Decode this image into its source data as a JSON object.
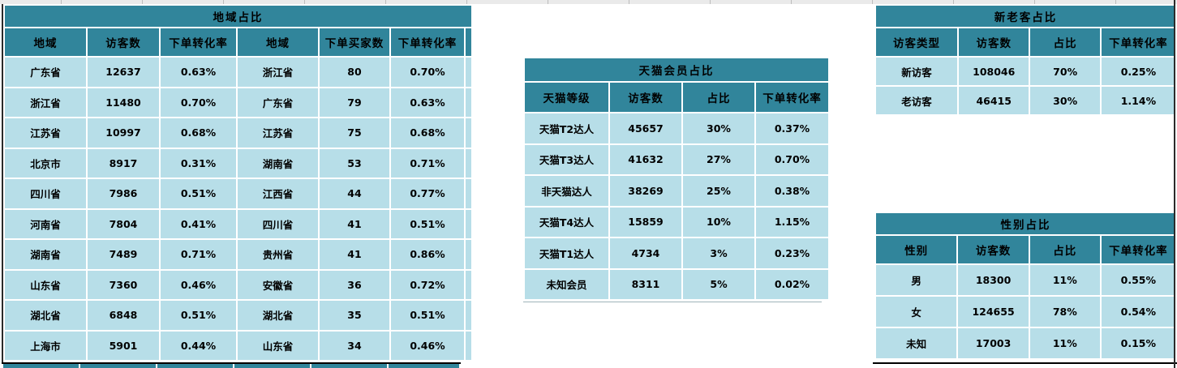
{
  "colors": {
    "header_teal": "#31859B",
    "cell_light_blue": "#B7DEE8",
    "text": "#000000",
    "sheet_background": "#FFFFFF",
    "pane_border": "#2B2B2B"
  },
  "tables": {
    "region": {
      "title": "地域占比",
      "headers": [
        "地域",
        "访客数",
        "下单转化率",
        "地域",
        "下单买家数",
        "下单转化率"
      ],
      "rows": [
        [
          "广东省",
          "12637",
          "0.63%",
          "浙江省",
          "80",
          "0.70%"
        ],
        [
          "浙江省",
          "11480",
          "0.70%",
          "广东省",
          "79",
          "0.63%"
        ],
        [
          "江苏省",
          "10997",
          "0.68%",
          "江苏省",
          "75",
          "0.68%"
        ],
        [
          "北京市",
          "8917",
          "0.31%",
          "湖南省",
          "53",
          "0.71%"
        ],
        [
          "四川省",
          "7986",
          "0.51%",
          "江西省",
          "44",
          "0.77%"
        ],
        [
          "河南省",
          "7804",
          "0.41%",
          "四川省",
          "41",
          "0.51%"
        ],
        [
          "湖南省",
          "7489",
          "0.71%",
          "贵州省",
          "41",
          "0.86%"
        ],
        [
          "山东省",
          "7360",
          "0.46%",
          "安徽省",
          "36",
          "0.72%"
        ],
        [
          "湖北省",
          "6848",
          "0.51%",
          "湖北省",
          "35",
          "0.51%"
        ],
        [
          "上海市",
          "5901",
          "0.44%",
          "山东省",
          "34",
          "0.46%"
        ]
      ]
    },
    "tmall": {
      "title": "天猫会员占比",
      "headers": [
        "天猫等级",
        "访客数",
        "占比",
        "下单转化率"
      ],
      "rows": [
        [
          "天猫T2达人",
          "45657",
          "30%",
          "0.37%"
        ],
        [
          "天猫T3达人",
          "41632",
          "27%",
          "0.70%"
        ],
        [
          "非天猫达人",
          "38269",
          "25%",
          "0.38%"
        ],
        [
          "天猫T4达人",
          "15859",
          "10%",
          "1.15%"
        ],
        [
          "天猫T1达人",
          "4734",
          "3%",
          "0.23%"
        ],
        [
          "未知会员",
          "8311",
          "5%",
          "0.02%"
        ]
      ]
    },
    "visitor": {
      "title": "新老客占比",
      "headers": [
        "访客类型",
        "访客数",
        "占比",
        "下单转化率"
      ],
      "rows": [
        [
          "新访客",
          "108046",
          "70%",
          "0.25%"
        ],
        [
          "老访客",
          "46415",
          "30%",
          "1.14%"
        ]
      ]
    },
    "gender": {
      "title": "性别占比",
      "headers": [
        "性别",
        "访客数",
        "占比",
        "下单转化率"
      ],
      "rows": [
        [
          "男",
          "18300",
          "11%",
          "0.55%"
        ],
        [
          "女",
          "124655",
          "78%",
          "0.54%"
        ],
        [
          "未知",
          "17003",
          "11%",
          "0.15%"
        ]
      ]
    }
  }
}
